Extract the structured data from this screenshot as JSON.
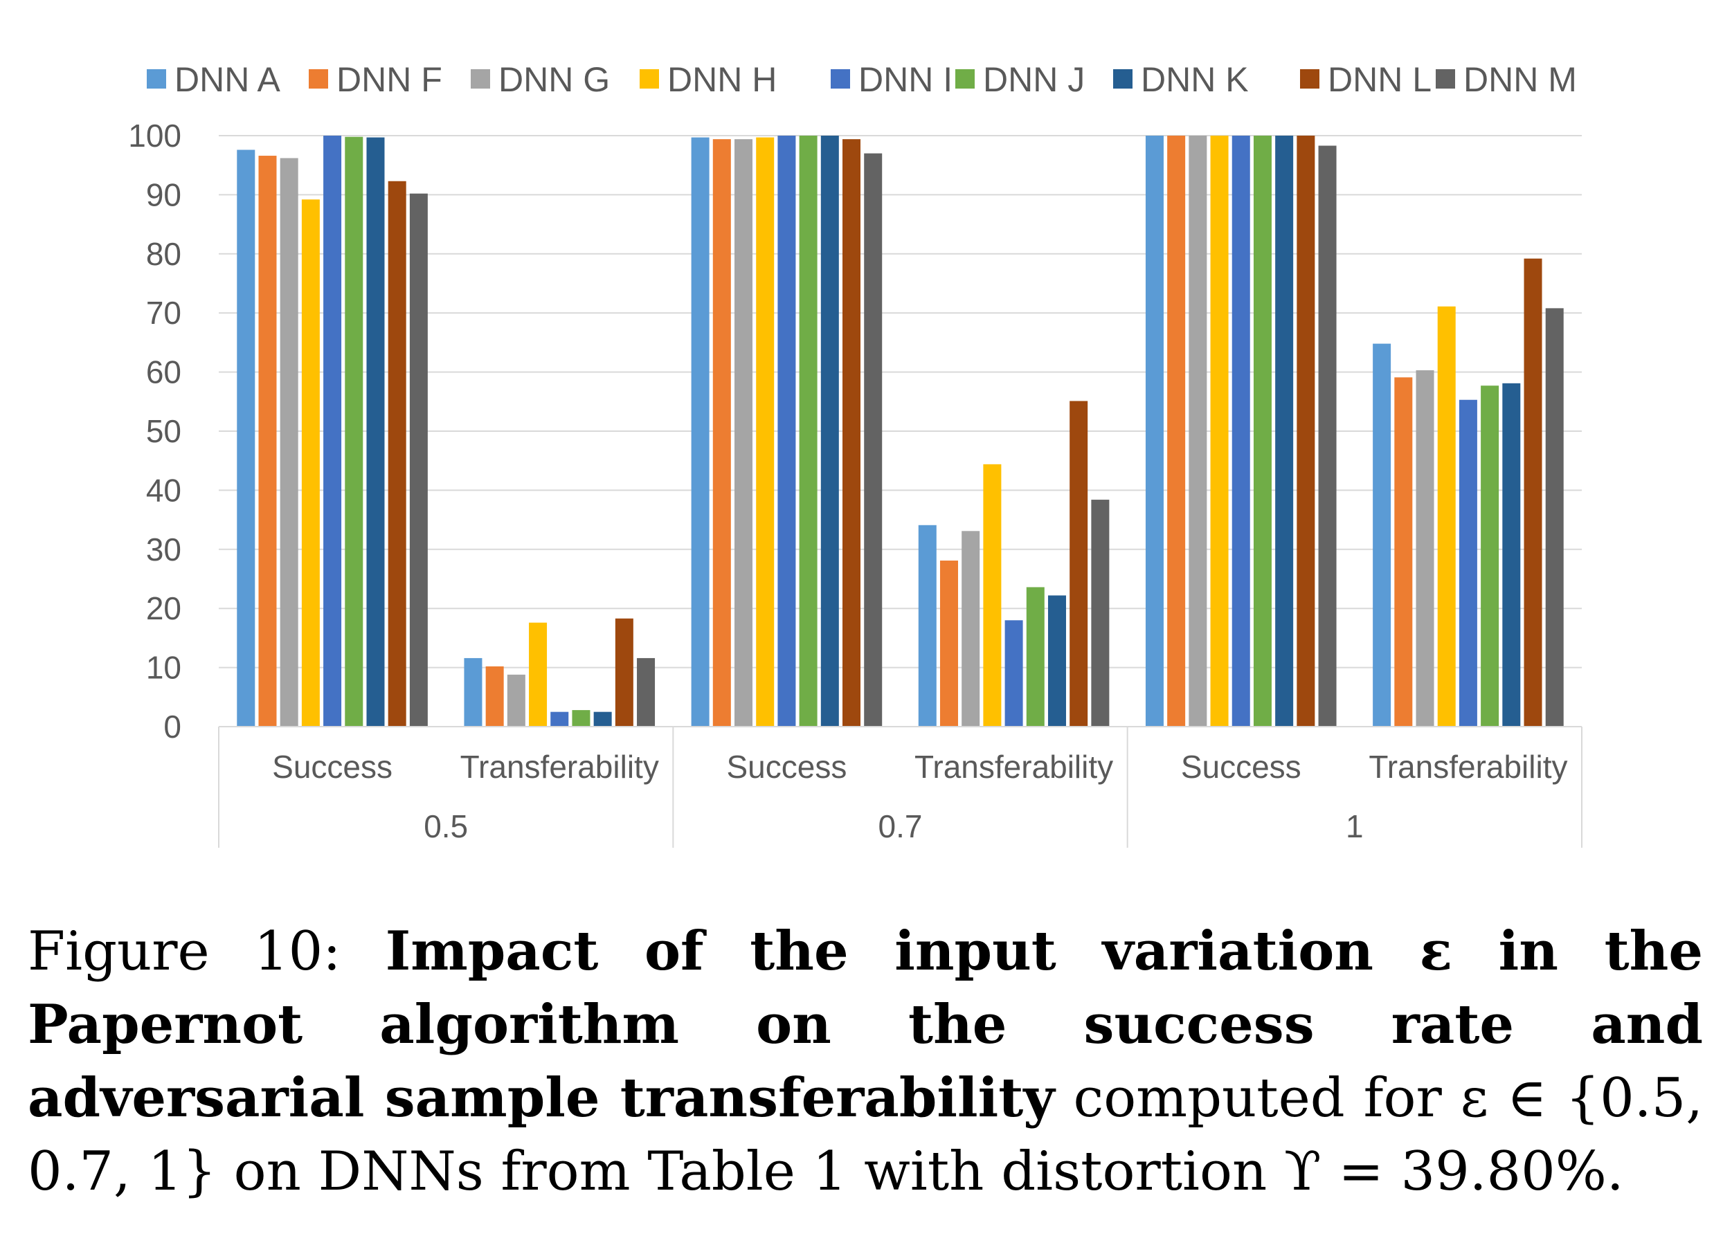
{
  "chart_data": {
    "type": "bar",
    "groups": [
      {
        "label": "0.5",
        "categories": [
          "Success",
          "Transferability"
        ]
      },
      {
        "label": "0.7",
        "categories": [
          "Success",
          "Transferability"
        ]
      },
      {
        "label": "1",
        "categories": [
          "Success",
          "Transferability"
        ]
      }
    ],
    "categories": [
      "Success",
      "Transferability",
      "Success",
      "Transferability",
      "Success",
      "Transferability"
    ],
    "series": [
      {
        "name": "DNN A",
        "color": "#5B9BD5",
        "values": [
          97.6,
          11.6,
          99.7,
          34.1,
          100,
          64.8
        ]
      },
      {
        "name": "DNN F",
        "color": "#ED7D31",
        "values": [
          96.6,
          10.2,
          99.4,
          28.1,
          100,
          59.1
        ]
      },
      {
        "name": "DNN G",
        "color": "#A5A5A5",
        "values": [
          96.2,
          8.8,
          99.4,
          33.1,
          100,
          60.3
        ]
      },
      {
        "name": "DNN H",
        "color": "#FFC000",
        "values": [
          89.2,
          17.6,
          99.7,
          44.4,
          100,
          71.1
        ]
      },
      {
        "name": "DNN I",
        "color": "#4472C4",
        "values": [
          100,
          2.5,
          100,
          18.0,
          100,
          55.3
        ]
      },
      {
        "name": "DNN J",
        "color": "#70AD47",
        "values": [
          99.8,
          2.8,
          100,
          23.6,
          100,
          57.7
        ]
      },
      {
        "name": "DNN K",
        "color": "#255E91",
        "values": [
          99.7,
          2.5,
          100,
          22.2,
          100,
          58.1
        ]
      },
      {
        "name": "DNN L",
        "color": "#9E480E",
        "values": [
          92.3,
          18.3,
          99.4,
          55.1,
          100,
          79.2
        ]
      },
      {
        "name": "DNN M",
        "color": "#636363",
        "values": [
          90.2,
          11.6,
          97.0,
          38.4,
          98.3,
          70.8
        ]
      }
    ],
    "ylim": [
      0,
      100
    ],
    "yticks": [
      "0",
      "10",
      "20",
      "30",
      "40",
      "50",
      "60",
      "70",
      "80",
      "90",
      "100"
    ],
    "grid": true,
    "legend": "top",
    "title": "",
    "xlabel": "",
    "ylabel": ""
  },
  "caption": {
    "label": "Figure 10: ",
    "bold": "Impact of the input variation ε in the Papernot algorithm on the success rate and adversarial sample transferability",
    "rest": " computed for ε ∈ {0.5, 0.7, 1} on DNNs from Table 1 with distortion ϒ = 39.80%."
  }
}
